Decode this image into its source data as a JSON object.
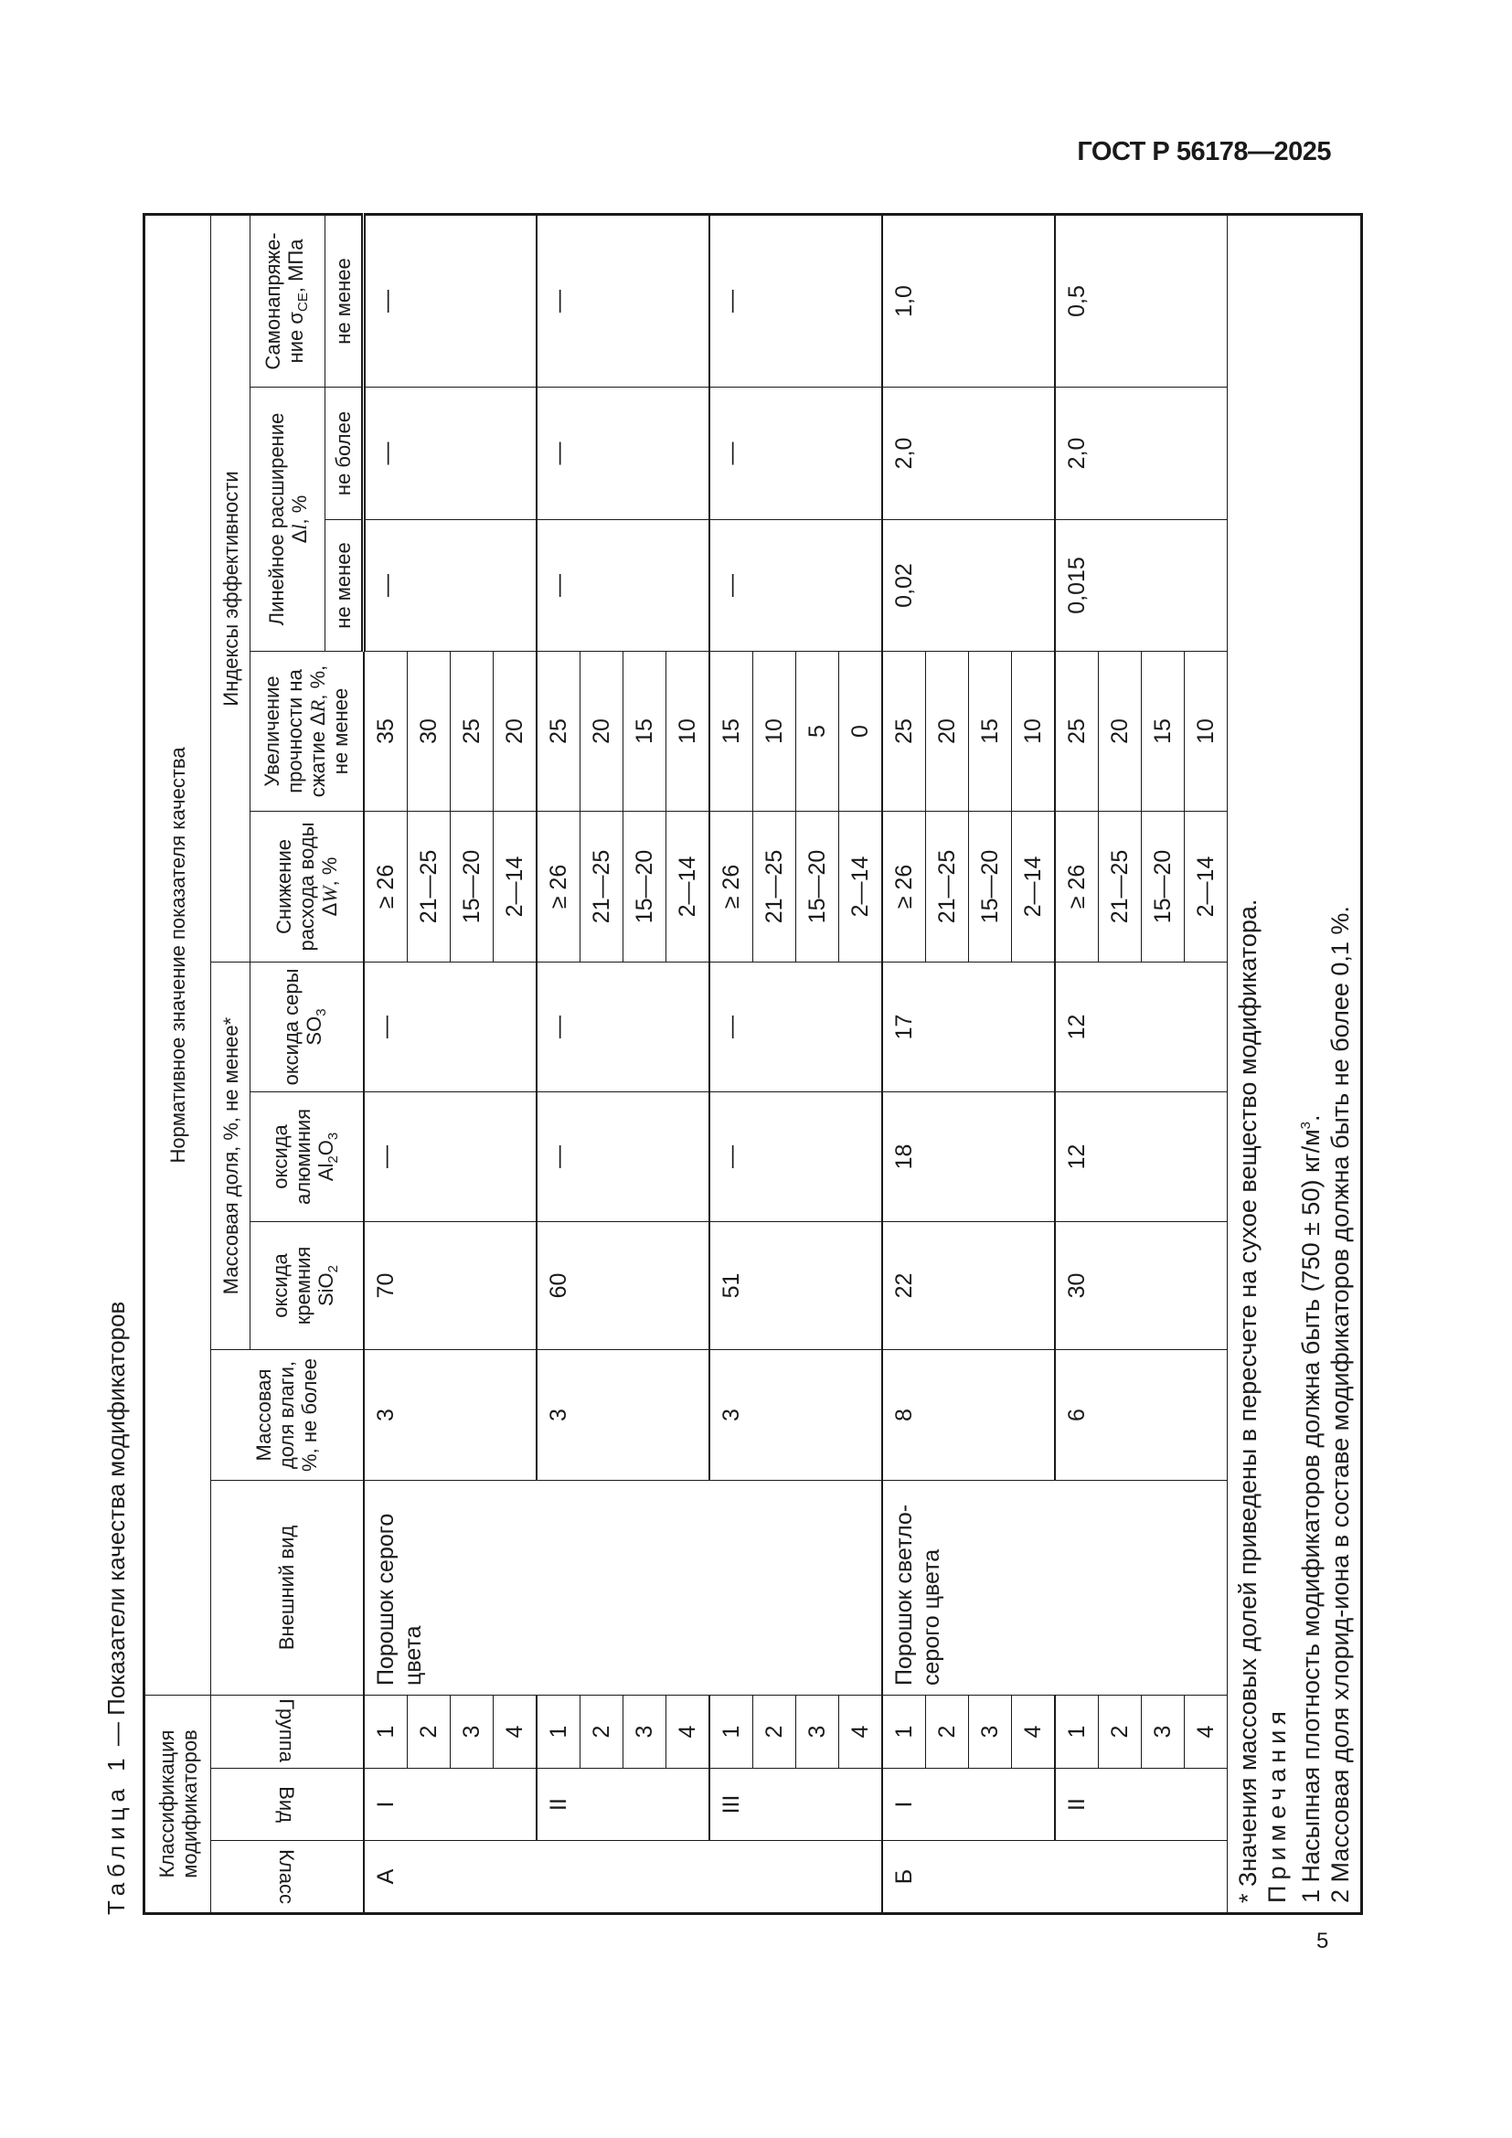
{
  "header": {
    "doc_id": "ГОСТ Р 56178—2025"
  },
  "page_number": "5",
  "caption": {
    "label": "Таблица 1",
    "dash": "—",
    "title": "Показатели качества модификаторов"
  },
  "columns": {
    "classification": "Классификация модификаторов",
    "class": "Класс",
    "kind": "Вид",
    "group": "Группа",
    "normative": "Нормативное значение показателя качества",
    "appearance": "Внешний вид",
    "moisture": "Массовая доля влаги, %, не более",
    "mass_fraction": "Массовая доля, %, не менее*",
    "sio2": {
      "text": "оксида кремния",
      "formula": "SiO",
      "sub": "2"
    },
    "al2o3": {
      "text": "оксида алюминия",
      "f1": "Al",
      "s1": "2",
      "f2": "O",
      "s2": "3"
    },
    "so3": {
      "text": "оксида серы",
      "formula": "SO",
      "sub": "3"
    },
    "efficiency": "Индексы эффективности",
    "water_reduction": {
      "text": "Снижение расхода воды",
      "symbol": "Δ",
      "var": "W",
      "unit": ", %"
    },
    "strength": {
      "text": "Увеличение прочности на сжатие",
      "symbol": "Δ",
      "var": "R",
      "unit": ", %, не менее"
    },
    "expansion": {
      "text": "Линейное расширение",
      "symbol": "Δ",
      "var": "l",
      "unit": ", %"
    },
    "self_stress": {
      "line1": "Самонапряже-",
      "line2": "ние",
      "symbol": "σ",
      "sub": "CE",
      "unit": ", МПа"
    },
    "not_less": "не менее",
    "not_more": "не более"
  },
  "body": [
    {
      "class": "А",
      "appearance": "Порошок серого цвета",
      "kinds": [
        {
          "kind": "I",
          "groups": [
            "1",
            "2",
            "3",
            "4"
          ],
          "moisture": "3",
          "sio2": "70",
          "al2o3": "—",
          "so3": "—",
          "water_reduction": [
            "≥ 26",
            "21—25",
            "15—20",
            "2—14"
          ],
          "strength": [
            "35",
            "30",
            "25",
            "20"
          ],
          "expansion_min": "—",
          "expansion_max": "—",
          "self_stress": "—"
        },
        {
          "kind": "II",
          "groups": [
            "1",
            "2",
            "3",
            "4"
          ],
          "moisture": "3",
          "sio2": "60",
          "al2o3": "—",
          "so3": "—",
          "water_reduction": [
            "≥ 26",
            "21—25",
            "15—20",
            "2—14"
          ],
          "strength": [
            "25",
            "20",
            "15",
            "10"
          ],
          "expansion_min": "—",
          "expansion_max": "—",
          "self_stress": "—"
        },
        {
          "kind": "III",
          "groups": [
            "1",
            "2",
            "3",
            "4"
          ],
          "moisture": "3",
          "sio2": "51",
          "al2o3": "—",
          "so3": "—",
          "water_reduction": [
            "≥ 26",
            "21—25",
            "15—20",
            "2—14"
          ],
          "strength": [
            "15",
            "10",
            "5",
            "0"
          ],
          "expansion_min": "—",
          "expansion_max": "—",
          "self_stress": "—"
        }
      ]
    },
    {
      "class": "Б",
      "appearance": "Порошок светло-серого цвета",
      "kinds": [
        {
          "kind": "I",
          "groups": [
            "1",
            "2",
            "3",
            "4"
          ],
          "moisture": "8",
          "sio2": "22",
          "al2o3": "18",
          "so3": "17",
          "water_reduction": [
            "≥ 26",
            "21—25",
            "15—20",
            "2—14"
          ],
          "strength": [
            "25",
            "20",
            "15",
            "10"
          ],
          "expansion_min": "0,02",
          "expansion_max": "2,0",
          "self_stress": "1,0"
        },
        {
          "kind": "II",
          "groups": [
            "1",
            "2",
            "3",
            "4"
          ],
          "moisture": "6",
          "sio2": "30",
          "al2o3": "12",
          "so3": "12",
          "water_reduction": [
            "≥ 26",
            "21—25",
            "15—20",
            "2—14"
          ],
          "strength": [
            "25",
            "20",
            "15",
            "10"
          ],
          "expansion_min": "0,015",
          "expansion_max": "2,0",
          "self_stress": "0,5"
        }
      ]
    }
  ],
  "notes": {
    "footnote": "* Значения массовых долей приведены в пересчете на сухое вещество модификатора.",
    "heading": "Примечания",
    "note1": "1 Насыпная плотность модификаторов должна быть (750 ± 50) кг/м",
    "note1_sup": "3",
    "note1_end": ".",
    "note2": "2 Массовая доля хлорид-иона в составе модификаторов должна быть не более 0,1 %."
  }
}
